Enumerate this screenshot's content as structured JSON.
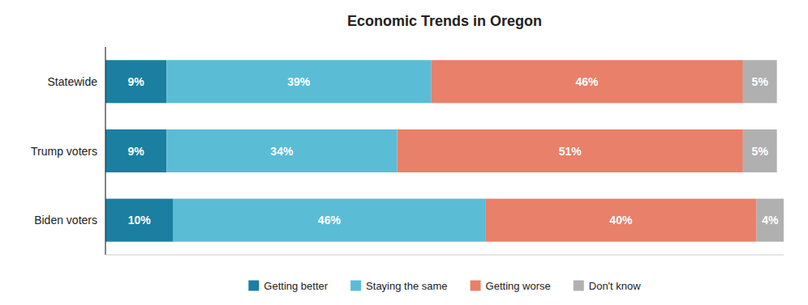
{
  "chart_data": {
    "type": "bar",
    "orientation": "horizontal",
    "stacked": true,
    "title": "Economic Trends in Oregon",
    "categories": [
      "Statewide",
      "Trump voters",
      "Biden voters"
    ],
    "series": [
      {
        "name": "Getting better",
        "color": "#1a7fa0",
        "values": [
          9,
          9,
          10
        ],
        "value_labels": [
          "9%",
          "9%",
          "10%"
        ]
      },
      {
        "name": "Staying the same",
        "color": "#5bbcd6",
        "values": [
          39,
          34,
          46
        ],
        "value_labels": [
          "39%",
          "34%",
          "46%"
        ]
      },
      {
        "name": "Getting worse",
        "color": "#e8806a",
        "values": [
          46,
          51,
          40
        ],
        "value_labels": [
          "46%",
          "51%",
          "40%"
        ]
      },
      {
        "name": "Don't know",
        "color": "#b0b0b0",
        "values": [
          5,
          5,
          4
        ],
        "value_labels": [
          "5%",
          "5%",
          "4%"
        ]
      }
    ],
    "xlim": [
      0,
      100
    ],
    "xticks": [],
    "tick_labels": "y",
    "grid": false,
    "legend": "bottom",
    "data_labels": true
  }
}
